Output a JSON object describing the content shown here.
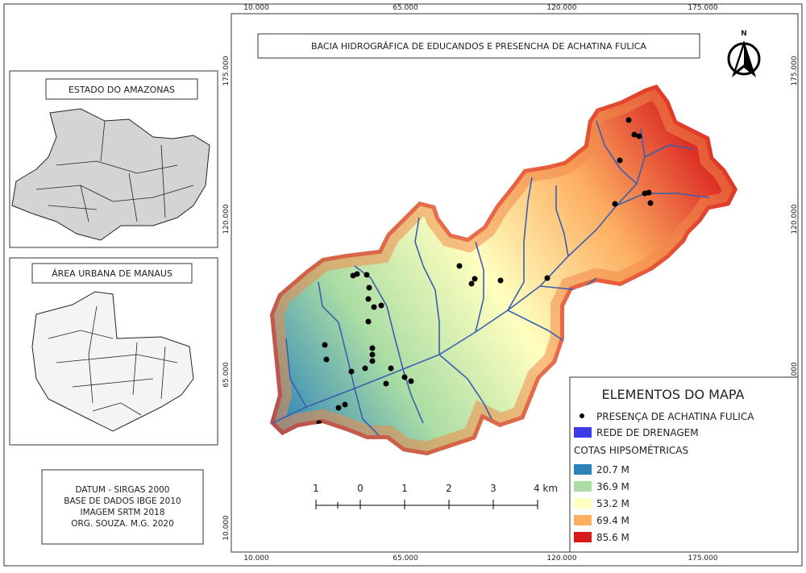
{
  "header": {
    "title": "BACIA HIDROGRÁFICA DE EDUCANDOS E PRESENCHA DE ACHATINA FULICA",
    "north": "N"
  },
  "grid": {
    "x_labels": [
      "10.000",
      "65.000",
      "120.000",
      "175.000"
    ],
    "y_labels": [
      "175.000",
      "120.000",
      "65.000",
      "10.000"
    ]
  },
  "insets": [
    {
      "title": "ESTADO DO AMAZONAS"
    },
    {
      "title": "ÁREA URBANA DE MANAUS"
    }
  ],
  "credits": [
    "DATUM - SIRGAS 2000",
    "BASE DE DADOS IBGE 2010",
    "IMAGEM SRTM 2018",
    "ORG. SOUZA. M.G. 2020"
  ],
  "legend": {
    "title": "ELEMENTOS DO MAPA",
    "points": "PRESENÇA DE ACHATINA FULICA",
    "drainage": "REDE DE DRENAGEM",
    "drainage_color": "#3b3be8",
    "classes_title": "COTAS HIPSOMÉTRICAS",
    "classes": [
      {
        "label": "20.7 M",
        "color": "#2b83ba"
      },
      {
        "label": "36.9 M",
        "color": "#abdda4"
      },
      {
        "label": "53.2 M",
        "color": "#ffffbf"
      },
      {
        "label": "69.4 M",
        "color": "#fdae61"
      },
      {
        "label": "85.6 M",
        "color": "#d7191c"
      }
    ]
  },
  "scale_bar": [
    "1",
    "0",
    "1",
    "2",
    "3",
    "4 km"
  ]
}
